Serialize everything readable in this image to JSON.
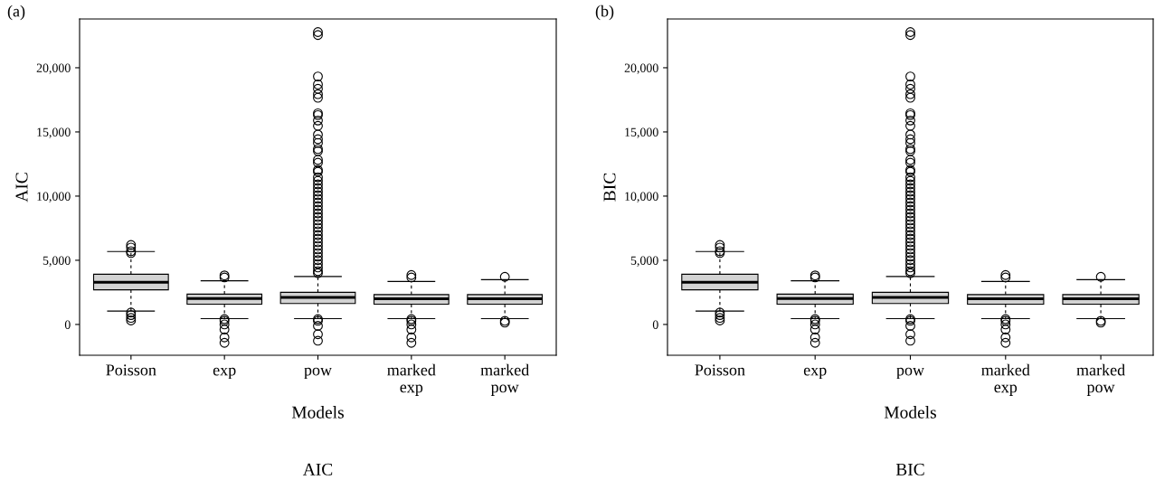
{
  "chart_data": [
    {
      "type": "box",
      "title": "(a)",
      "xlabel": "Models",
      "ylabel": "AIC",
      "annotations": [
        "AIC"
      ],
      "categories": [
        "Poisson",
        "exp",
        "pow",
        "marked\nexp",
        "marked\npow"
      ],
      "color": "#d3d3d3",
      "ylim": [
        -2400,
        23800
      ],
      "yticks": [
        {
          "value": 0,
          "label": "0"
        },
        {
          "value": 5000,
          "label": "5,000"
        },
        {
          "value": 10000,
          "label": "10,000"
        },
        {
          "value": 15000,
          "label": "15,000"
        },
        {
          "value": 20000,
          "label": "20,000"
        }
      ],
      "grid": false,
      "marker": "circle",
      "boxes": [
        {
          "low": 1040,
          "q1": 2700,
          "median": 3290,
          "q3": 3910,
          "high": 5680,
          "outliers": [
            6190,
            5990,
            5710,
            5570,
            930,
            730,
            510,
            310
          ]
        },
        {
          "low": 450,
          "q1": 1575,
          "median": 2025,
          "q3": 2360,
          "high": 3400,
          "outliers": [
            3820,
            3660,
            420,
            280,
            0,
            -390,
            -1010,
            -1430
          ]
        },
        {
          "low": 450,
          "q1": 1630,
          "median": 2110,
          "q3": 2500,
          "high": 3740,
          "outliers": [
            22780,
            22550,
            19320,
            18700,
            18360,
            17940,
            17660,
            16450,
            16310,
            15890,
            15470,
            14790,
            14430,
            14140,
            13670,
            13500,
            12820,
            12600,
            12040,
            11900,
            11470,
            11190,
            10910,
            10630,
            10350,
            10070,
            9790,
            9500,
            9220,
            8940,
            8660,
            8380,
            8100,
            7820,
            7540,
            7260,
            6970,
            6690,
            6410,
            6130,
            5850,
            5570,
            5290,
            5010,
            4720,
            4440,
            4160,
            3990,
            420,
            280,
            -110,
            -760,
            -1270
          ]
        },
        {
          "low": 450,
          "q1": 1575,
          "median": 2000,
          "q3": 2330,
          "high": 3350,
          "outliers": [
            3850,
            3660,
            420,
            280,
            0,
            -390,
            -1010,
            -1430
          ]
        },
        {
          "low": 450,
          "q1": 1575,
          "median": 2000,
          "q3": 2330,
          "high": 3490,
          "outliers": [
            3710,
            280,
            140
          ]
        }
      ]
    },
    {
      "type": "box",
      "title": "(b)",
      "xlabel": "Models",
      "ylabel": "BIC",
      "annotations": [
        "BIC"
      ],
      "categories": [
        "Poisson",
        "exp",
        "pow",
        "marked\nexp",
        "marked\npow"
      ],
      "color": "#d3d3d3",
      "ylim": [
        -2400,
        23800
      ],
      "yticks": [
        {
          "value": 0,
          "label": "0"
        },
        {
          "value": 5000,
          "label": "5,000"
        },
        {
          "value": 10000,
          "label": "10,000"
        },
        {
          "value": 15000,
          "label": "15,000"
        },
        {
          "value": 20000,
          "label": "20,000"
        }
      ],
      "grid": false,
      "marker": "circle",
      "boxes": [
        {
          "low": 1040,
          "q1": 2700,
          "median": 3290,
          "q3": 3910,
          "high": 5680,
          "outliers": [
            6190,
            5990,
            5710,
            5570,
            930,
            730,
            510,
            310
          ]
        },
        {
          "low": 450,
          "q1": 1575,
          "median": 2025,
          "q3": 2360,
          "high": 3400,
          "outliers": [
            3820,
            3660,
            420,
            280,
            0,
            -390,
            -1010,
            -1430
          ]
        },
        {
          "low": 450,
          "q1": 1630,
          "median": 2110,
          "q3": 2500,
          "high": 3740,
          "outliers": [
            22780,
            22550,
            19320,
            18700,
            18360,
            17940,
            17660,
            16450,
            16310,
            15890,
            15470,
            14790,
            14430,
            14140,
            13670,
            13500,
            12820,
            12600,
            12040,
            11900,
            11470,
            11190,
            10910,
            10630,
            10350,
            10070,
            9790,
            9500,
            9220,
            8940,
            8660,
            8380,
            8100,
            7820,
            7540,
            7260,
            6970,
            6690,
            6410,
            6130,
            5850,
            5570,
            5290,
            5010,
            4720,
            4440,
            4160,
            3990,
            420,
            280,
            -110,
            -760,
            -1270
          ]
        },
        {
          "low": 450,
          "q1": 1575,
          "median": 2000,
          "q3": 2330,
          "high": 3350,
          "outliers": [
            3850,
            3660,
            420,
            280,
            0,
            -390,
            -1010,
            -1430
          ]
        },
        {
          "low": 450,
          "q1": 1575,
          "median": 2000,
          "q3": 2330,
          "high": 3490,
          "outliers": [
            3710,
            280,
            140
          ]
        }
      ]
    }
  ]
}
